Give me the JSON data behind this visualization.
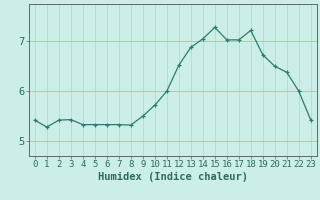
{
  "x": [
    0,
    1,
    2,
    3,
    4,
    5,
    6,
    7,
    8,
    9,
    10,
    11,
    12,
    13,
    14,
    15,
    16,
    17,
    18,
    19,
    20,
    21,
    22,
    23
  ],
  "y": [
    5.42,
    5.28,
    5.42,
    5.43,
    5.33,
    5.33,
    5.33,
    5.33,
    5.32,
    5.5,
    5.72,
    6.0,
    6.52,
    6.88,
    7.05,
    7.28,
    7.03,
    7.03,
    7.22,
    6.73,
    6.5,
    6.38,
    6.0,
    5.42
  ],
  "line_color": "#2d7b70",
  "marker": "+",
  "marker_size": 3.5,
  "bg_color": "#cceee8",
  "grid_color_h": "#e8aaaa",
  "grid_color_v": "#aad8d3",
  "xlabel": "Humidex (Indice chaleur)",
  "ylim": [
    4.7,
    7.75
  ],
  "yticks": [
    5,
    6,
    7
  ],
  "xticks": [
    0,
    1,
    2,
    3,
    4,
    5,
    6,
    7,
    8,
    9,
    10,
    11,
    12,
    13,
    14,
    15,
    16,
    17,
    18,
    19,
    20,
    21,
    22,
    23
  ],
  "font_color": "#2d6b60",
  "axis_color": "#666666",
  "xlabel_fontsize": 7.5,
  "tick_fontsize": 6.5,
  "ytick_fontsize": 7.5
}
